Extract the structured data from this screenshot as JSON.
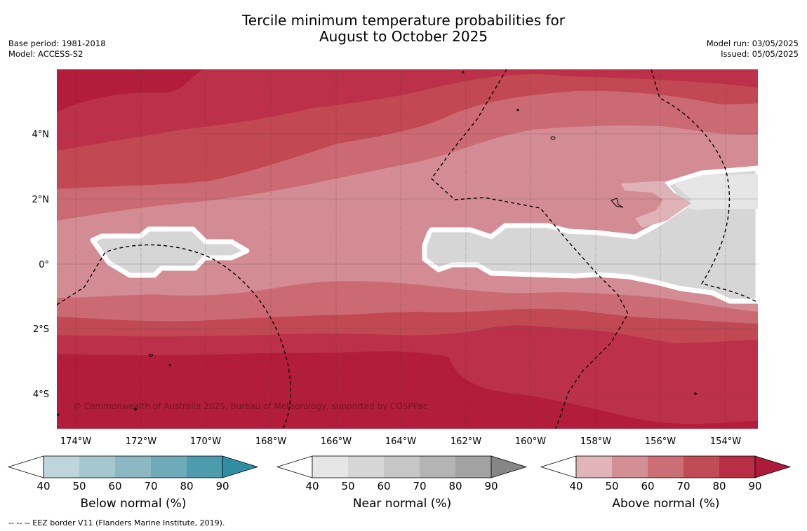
{
  "title": {
    "line1": "Tercile minimum temperature probabilities for",
    "line2": "August to October 2025"
  },
  "meta_left": {
    "base_period": "Base period: 1981-2018",
    "model": "Model: ACCESS-S2"
  },
  "meta_right": {
    "model_run": "Model run: 03/05/2025",
    "issued": "Issued: 05/05/2025"
  },
  "map": {
    "lon_labels": [
      "174°W",
      "172°W",
      "170°W",
      "168°W",
      "166°W",
      "164°W",
      "162°W",
      "160°W",
      "158°W",
      "156°W",
      "154°W"
    ],
    "lat_labels": [
      "4°N",
      "2°N",
      "0°",
      "2°S",
      "4°S"
    ],
    "copyright": "© Commonwealth of Australia 2025, Bureau of Meteorology, supported by COSPPac"
  },
  "colorbars": [
    {
      "label": "Below normal (%)",
      "ticks": [
        "40",
        "50",
        "60",
        "70",
        "80",
        "90"
      ],
      "colors": [
        "#ffffff",
        "#bdd5db",
        "#a6c7cd",
        "#8bb8c3",
        "#6eaab8",
        "#4d9cae",
        "#2f8ea2"
      ]
    },
    {
      "label": "Near normal (%)",
      "ticks": [
        "40",
        "50",
        "60",
        "70",
        "80",
        "90"
      ],
      "colors": [
        "#ffffff",
        "#e6e6e6",
        "#d6d6d6",
        "#c6c6c6",
        "#b4b4b4",
        "#a2a2a2",
        "#868686"
      ]
    },
    {
      "label": "Above normal (%)",
      "ticks": [
        "40",
        "50",
        "60",
        "70",
        "80",
        "90"
      ],
      "colors": [
        "#ffffff",
        "#e0b4b9",
        "#d48e96",
        "#cb6e76",
        "#c14c56",
        "#b82f45",
        "#ae1a39"
      ]
    }
  ],
  "footnote": "--  --  -- EEZ border V11 (Flanders Marine Institute, 2019)."
}
